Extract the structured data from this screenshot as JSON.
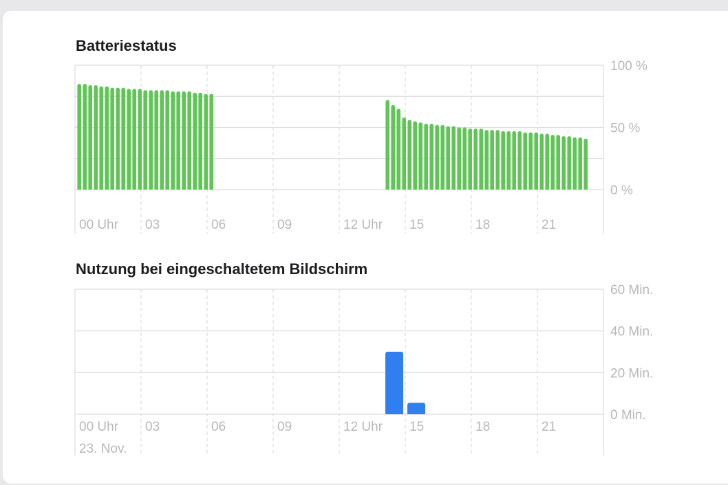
{
  "battery_section": {
    "title": "Batteriestatus"
  },
  "usage_section": {
    "title": "Nutzung bei eingeschaltetem Bildschirm"
  },
  "date_label": "23. Nov.",
  "colors": {
    "battery_bar": "#5fc656",
    "usage_bar": "#2f7ff0",
    "grid": "#dcdce0",
    "tick_text": "#b8b8bc",
    "title_text": "#1d1d1f"
  },
  "chart_data": [
    {
      "type": "bar",
      "title": "Batteriestatus",
      "x_tick_labels": [
        "00 Uhr",
        "03",
        "06",
        "09",
        "12 Uhr",
        "15",
        "18",
        "21"
      ],
      "y_tick_labels": [
        "100 %",
        "50 %",
        "0 %"
      ],
      "ylim": [
        0,
        100
      ],
      "x_range_hours": [
        0,
        24
      ],
      "grid": true,
      "series": [
        {
          "x_start_hours": 0.25,
          "x_step_hours": 0.25,
          "values": [
            85,
            85,
            84,
            84,
            83,
            83,
            82,
            82,
            82,
            81,
            81,
            81,
            80,
            80,
            80,
            80,
            80,
            79,
            79,
            79,
            79,
            78,
            78,
            77,
            77
          ]
        },
        {
          "x_start_hours": 14.25,
          "x_step_hours": 0.25,
          "values": [
            72,
            68,
            65,
            58,
            56,
            55,
            54,
            53,
            53,
            52,
            52,
            51,
            51,
            50,
            50,
            49,
            49,
            49,
            48,
            48,
            48,
            47,
            47,
            47,
            47,
            46,
            46,
            46,
            45,
            45,
            44,
            44,
            43,
            43,
            42,
            42,
            41
          ]
        }
      ]
    },
    {
      "type": "bar",
      "title": "Nutzung bei eingeschaltetem Bildschirm",
      "x_tick_labels": [
        "00 Uhr",
        "03",
        "06",
        "09",
        "12 Uhr",
        "15",
        "18",
        "21"
      ],
      "y_tick_labels": [
        "60 Min.",
        "40 Min.",
        "20 Min.",
        "0 Min."
      ],
      "ylim": [
        0,
        60
      ],
      "x_range_hours": [
        0,
        24
      ],
      "grid": true,
      "bars": [
        {
          "hour": 14,
          "value": 30
        },
        {
          "hour": 15,
          "value": 5.5
        }
      ]
    }
  ]
}
